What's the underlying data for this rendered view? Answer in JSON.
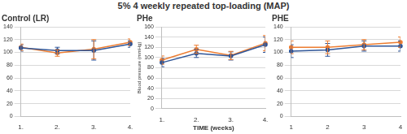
{
  "title": "5% 4 weekly repeated top-loading (MAP)",
  "chart_data": [
    {
      "type": "line",
      "title": "Control (LR)",
      "categories": [
        "1.",
        "2.",
        "3.",
        "4."
      ],
      "series": [
        {
          "color": "#2f5597",
          "values": [
            107,
            103,
            103,
            113
          ],
          "errors": [
            5,
            5,
            15,
            5
          ]
        },
        {
          "color": "#ed7d31",
          "values": [
            108,
            99,
            105,
            116
          ],
          "errors": [
            5,
            5,
            15,
            5
          ]
        }
      ],
      "ylim": [
        0,
        140
      ],
      "yticks": [
        0,
        20,
        40,
        60,
        80,
        100,
        120,
        140
      ],
      "grid": true,
      "marker": "circle"
    },
    {
      "type": "line",
      "title": "PHe",
      "x_label": "TIME (weeks)",
      "y_label": "Blood pressure (mmHg)",
      "categories": [
        "1.",
        "2.",
        "3.",
        "4."
      ],
      "series": [
        {
          "color": "#2f5597",
          "values": [
            90,
            108,
            103,
            125
          ],
          "errors": [
            8,
            8,
            8,
            15
          ]
        },
        {
          "color": "#ed7d31",
          "values": [
            95,
            116,
            104,
            128
          ],
          "errors": [
            8,
            8,
            8,
            15
          ]
        }
      ],
      "ylim": [
        0,
        160
      ],
      "yticks": [
        0,
        20,
        40,
        60,
        80,
        100,
        120,
        140,
        160
      ],
      "grid": true,
      "marker": "circle"
    },
    {
      "type": "line",
      "title": "PHE",
      "categories": [
        "1",
        "2",
        "3",
        "4"
      ],
      "series": [
        {
          "color": "#2f5597",
          "values": [
            102,
            104,
            110,
            110
          ],
          "errors": [
            10,
            10,
            8,
            8
          ]
        },
        {
          "color": "#ed7d31",
          "values": [
            108,
            108,
            112,
            116
          ],
          "errors": [
            10,
            10,
            8,
            8
          ]
        }
      ],
      "ylim": [
        0,
        140
      ],
      "yticks": [
        0,
        20,
        40,
        60,
        80,
        100,
        120,
        140
      ],
      "grid": true,
      "marker": "circle"
    }
  ]
}
